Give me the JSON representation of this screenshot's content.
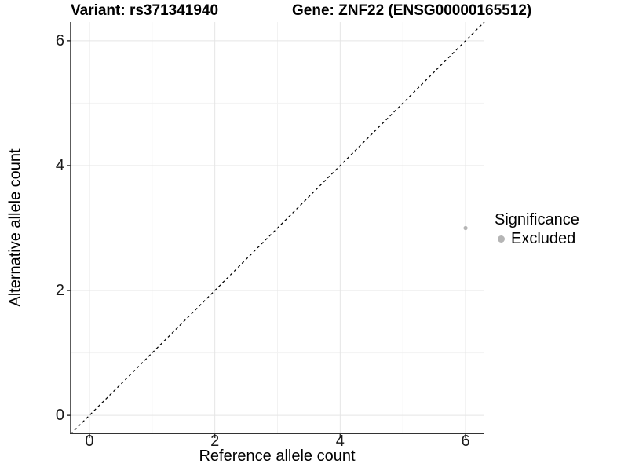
{
  "chart_data": {
    "type": "scatter",
    "title_left": "Variant: rs371341940",
    "title_right": "Gene: ZNF22 (ENSG00000165512)",
    "xlabel": "Reference allele count",
    "ylabel": "Alternative allele count",
    "xlim": [
      -0.3,
      6.3
    ],
    "ylim": [
      -0.3,
      6.3
    ],
    "xticks": [
      0,
      2,
      4,
      6
    ],
    "yticks": [
      0,
      2,
      4,
      6
    ],
    "grid_minor_x": [
      1,
      3,
      5
    ],
    "grid_minor_y": [
      1,
      3,
      5
    ],
    "grid": "on",
    "identity_line": {
      "slope": 1,
      "intercept": 0,
      "style": "dashed",
      "color": "#000000"
    },
    "points": [
      {
        "x": 6,
        "y": 3,
        "significance": "Excluded"
      }
    ],
    "legend": {
      "title": "Significance",
      "position": "right",
      "items": [
        {
          "label": "Excluded",
          "color": "#b5b5b5"
        }
      ]
    },
    "colors": {
      "point": "#b5b5b5",
      "grid_major": "#e5e5e5",
      "grid_minor": "#f2f2f2",
      "axis_line": "#333333",
      "tick_mark": "#333333",
      "tick_text": "#1a1a1a"
    }
  }
}
